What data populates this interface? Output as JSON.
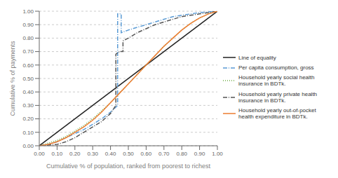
{
  "chart_data": {
    "type": "line",
    "xlabel": "Cumulative % of population, ranked from poorest to richest",
    "ylabel": "Cumulative % of payments",
    "xlim": [
      0.0,
      1.0
    ],
    "ylim": [
      0.0,
      1.0
    ],
    "xticks": [
      {
        "value": 0.0,
        "label": "0.00"
      },
      {
        "value": 0.1,
        "label": "0.10"
      },
      {
        "value": 0.2,
        "label": "0.20"
      },
      {
        "value": 0.3,
        "label": "0.30"
      },
      {
        "value": 0.4,
        "label": "0.40"
      },
      {
        "value": 0.5,
        "label": "0.50"
      },
      {
        "value": 0.6,
        "label": "0.60"
      },
      {
        "value": 0.7,
        "label": "0.70"
      },
      {
        "value": 0.8,
        "label": "0.80"
      },
      {
        "value": 0.9,
        "label": "0.90"
      },
      {
        "value": 1.0,
        "label": "1.00"
      }
    ],
    "yticks": [
      {
        "value": 0.0,
        "label": "0.00"
      },
      {
        "value": 0.1,
        "label": "0.10"
      },
      {
        "value": 0.2,
        "label": "0.20"
      },
      {
        "value": 0.3,
        "label": "0.30"
      },
      {
        "value": 0.4,
        "label": "0.40"
      },
      {
        "value": 0.5,
        "label": "0.50"
      },
      {
        "value": 0.6,
        "label": "0.60"
      },
      {
        "value": 0.7,
        "label": "0.70"
      },
      {
        "value": 0.8,
        "label": "0.80"
      },
      {
        "value": 0.9,
        "label": "0.90"
      },
      {
        "value": 1.0,
        "label": "1.00"
      }
    ],
    "grid": true,
    "legend": "right",
    "series": [
      {
        "name": "Line of equality",
        "color": "#222222",
        "line_style": "solid",
        "x": [
          0,
          1
        ],
        "values": [
          0,
          1
        ]
      },
      {
        "name": "Per capita consumption, gross",
        "color": "#5b9bd5",
        "line_style": "dashdot",
        "x": [
          0.0,
          0.05,
          0.1,
          0.15,
          0.2,
          0.25,
          0.3,
          0.35,
          0.4,
          0.44,
          0.44,
          0.46,
          0.46,
          0.5,
          0.55,
          0.6,
          0.65,
          0.7,
          0.75,
          0.8,
          0.85,
          0.9,
          0.95,
          1.0
        ],
        "values": [
          0.0,
          0.01,
          0.03,
          0.06,
          0.09,
          0.12,
          0.16,
          0.2,
          0.25,
          0.3,
          0.98,
          0.98,
          0.84,
          0.86,
          0.88,
          0.9,
          0.92,
          0.94,
          0.96,
          0.97,
          0.98,
          0.99,
          0.995,
          1.0
        ]
      },
      {
        "name": "Household yearly social health\ninsurance in BDTk.",
        "color": "#70ad47",
        "line_style": "dotted",
        "x": [
          0.0,
          0.05,
          0.1,
          0.15,
          0.2,
          0.25,
          0.3,
          0.35,
          0.4,
          0.45,
          0.5,
          0.55,
          0.6,
          0.65,
          0.7,
          0.75,
          0.8,
          0.85,
          0.9,
          0.95,
          1.0
        ],
        "values": [
          0.0,
          0.02,
          0.04,
          0.07,
          0.11,
          0.15,
          0.2,
          0.26,
          0.32,
          0.39,
          0.46,
          0.53,
          0.6,
          0.67,
          0.74,
          0.8,
          0.86,
          0.91,
          0.95,
          0.98,
          1.0
        ]
      },
      {
        "name": "Household yearly private health\ninsurance in BDTk.",
        "color": "#555555",
        "line_style": "dashdot",
        "x": [
          0.0,
          0.05,
          0.1,
          0.15,
          0.2,
          0.25,
          0.3,
          0.35,
          0.4,
          0.43,
          0.43,
          0.45,
          0.47,
          0.47,
          0.5,
          0.55,
          0.6,
          0.65,
          0.7,
          0.75,
          0.8,
          0.85,
          0.9,
          0.95,
          1.0
        ],
        "values": [
          0.0,
          0.005,
          0.01,
          0.03,
          0.06,
          0.1,
          0.14,
          0.18,
          0.24,
          0.3,
          0.68,
          0.7,
          0.7,
          0.78,
          0.8,
          0.84,
          0.87,
          0.9,
          0.92,
          0.94,
          0.96,
          0.97,
          0.98,
          0.99,
          1.0
        ]
      },
      {
        "name": "Household yearly out-of-pocket\nhealth expenditure in BDTk.",
        "color": "#ed7d31",
        "line_style": "solid",
        "x": [
          0.0,
          0.05,
          0.1,
          0.15,
          0.2,
          0.25,
          0.3,
          0.35,
          0.4,
          0.45,
          0.5,
          0.55,
          0.6,
          0.65,
          0.7,
          0.75,
          0.8,
          0.85,
          0.9,
          0.95,
          1.0
        ],
        "values": [
          0.0,
          0.01,
          0.03,
          0.06,
          0.1,
          0.14,
          0.19,
          0.25,
          0.32,
          0.39,
          0.46,
          0.53,
          0.6,
          0.67,
          0.74,
          0.8,
          0.86,
          0.91,
          0.95,
          0.98,
          1.0
        ]
      }
    ]
  }
}
